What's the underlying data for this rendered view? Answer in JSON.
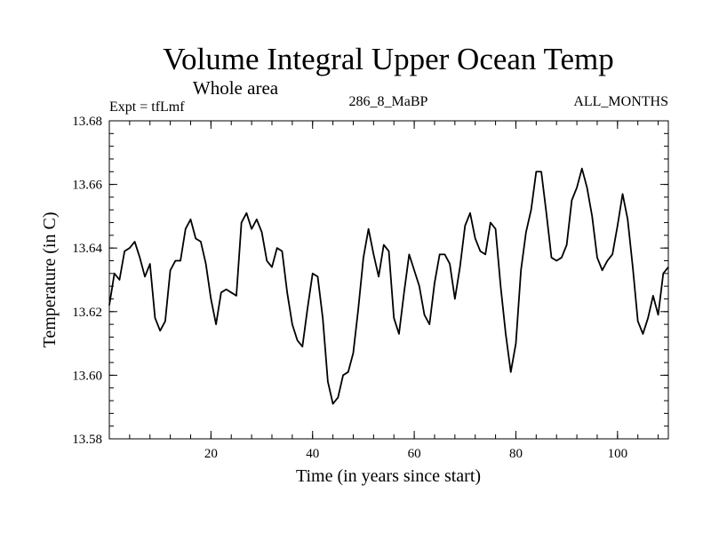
{
  "chart_data": {
    "type": "line",
    "title": "Volume Integral Upper Ocean Temp",
    "subtitle": "Whole area",
    "header_left": "Expt = tfLmf",
    "header_center": "286_8_MaBP",
    "header_right": "ALL_MONTHS",
    "xlabel": "Time (in years since start)",
    "ylabel": "Temperature (in C)",
    "xlim": [
      0,
      110
    ],
    "ylim": [
      13.58,
      13.68
    ],
    "xticks_major": [
      20,
      40,
      60,
      80,
      100
    ],
    "xticks_major_labels": [
      "20",
      "40",
      "60",
      "80",
      "100"
    ],
    "yticks_major": [
      13.58,
      13.6,
      13.62,
      13.64,
      13.66,
      13.68
    ],
    "yticks_major_labels": [
      "13.58",
      "13.60",
      "13.62",
      "13.64",
      "13.66",
      "13.68"
    ],
    "xtick_minor_step": 4,
    "ytick_minor_step": 0.004,
    "grid": false,
    "series": [
      {
        "name": "Volume Integral Upper Ocean Temp",
        "x": [
          0,
          1,
          2,
          3,
          4,
          5,
          6,
          7,
          8,
          9,
          10,
          11,
          12,
          13,
          14,
          15,
          16,
          17,
          18,
          19,
          20,
          21,
          22,
          23,
          24,
          25,
          26,
          27,
          28,
          29,
          30,
          31,
          32,
          33,
          34,
          35,
          36,
          37,
          38,
          39,
          40,
          41,
          42,
          43,
          44,
          45,
          46,
          47,
          48,
          49,
          50,
          51,
          52,
          53,
          54,
          55,
          56,
          57,
          58,
          59,
          60,
          61,
          62,
          63,
          64,
          65,
          66,
          67,
          68,
          69,
          70,
          71,
          72,
          73,
          74,
          75,
          76,
          77,
          78,
          79,
          80,
          81,
          82,
          83,
          84,
          85,
          86,
          87,
          88,
          89,
          90,
          91,
          92,
          93,
          94,
          95,
          96,
          97,
          98,
          99,
          100,
          101,
          102,
          103,
          104,
          105,
          106,
          107,
          108,
          109,
          110
        ],
        "values": [
          13.622,
          13.632,
          13.63,
          13.639,
          13.64,
          13.642,
          13.637,
          13.631,
          13.635,
          13.618,
          13.614,
          13.617,
          13.633,
          13.636,
          13.636,
          13.646,
          13.649,
          13.643,
          13.642,
          13.635,
          13.624,
          13.616,
          13.626,
          13.627,
          13.626,
          13.625,
          13.648,
          13.651,
          13.646,
          13.649,
          13.645,
          13.636,
          13.634,
          13.64,
          13.639,
          13.626,
          13.616,
          13.611,
          13.609,
          13.621,
          13.632,
          13.631,
          13.618,
          13.598,
          13.591,
          13.593,
          13.6,
          13.601,
          13.607,
          13.621,
          13.637,
          13.646,
          13.638,
          13.631,
          13.641,
          13.639,
          13.618,
          13.613,
          13.626,
          13.638,
          13.633,
          13.628,
          13.619,
          13.616,
          13.629,
          13.638,
          13.638,
          13.635,
          13.624,
          13.634,
          13.647,
          13.651,
          13.643,
          13.639,
          13.638,
          13.648,
          13.646,
          13.628,
          13.613,
          13.601,
          13.61,
          13.633,
          13.645,
          13.652,
          13.664,
          13.664,
          13.651,
          13.637,
          13.636,
          13.637,
          13.641,
          13.655,
          13.659,
          13.665,
          13.659,
          13.65,
          13.637,
          13.633,
          13.636,
          13.638,
          13.647,
          13.657,
          13.649,
          13.634,
          13.617,
          13.613,
          13.618,
          13.625,
          13.619,
          13.632,
          13.634
        ]
      }
    ]
  }
}
